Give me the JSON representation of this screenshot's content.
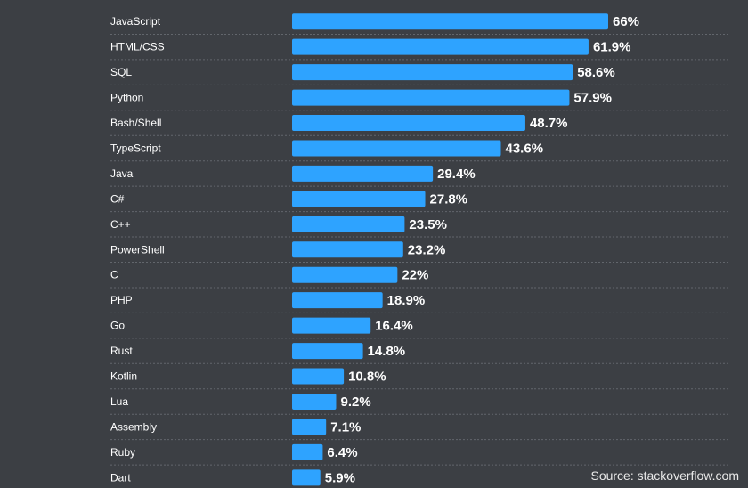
{
  "chart_data": {
    "type": "bar",
    "orientation": "horizontal",
    "categories": [
      "JavaScript",
      "HTML/CSS",
      "SQL",
      "Python",
      "Bash/Shell",
      "TypeScript",
      "Java",
      "C#",
      "C++",
      "PowerShell",
      "C",
      "PHP",
      "Go",
      "Rust",
      "Kotlin",
      "Lua",
      "Assembly",
      "Ruby",
      "Dart"
    ],
    "values": [
      66,
      61.9,
      58.6,
      57.9,
      48.7,
      43.6,
      29.4,
      27.8,
      23.5,
      23.2,
      22,
      18.9,
      16.4,
      14.8,
      10.8,
      9.2,
      7.1,
      6.4,
      5.9
    ],
    "value_labels": [
      "66%",
      "61.9%",
      "58.6%",
      "57.9%",
      "48.7%",
      "43.6%",
      "29.4%",
      "27.8%",
      "23.5%",
      "23.2%",
      "22%",
      "18.9%",
      "16.4%",
      "14.8%",
      "10.8%",
      "9.2%",
      "7.1%",
      "6.4%",
      "5.9%"
    ],
    "unit": "%",
    "xlim": [
      0,
      66
    ],
    "grid": false,
    "bar_color": "#2ea3ff",
    "background_color": "#3c3f44",
    "separator_color": "#62666c"
  },
  "source": "Source: stackoverflow.com"
}
